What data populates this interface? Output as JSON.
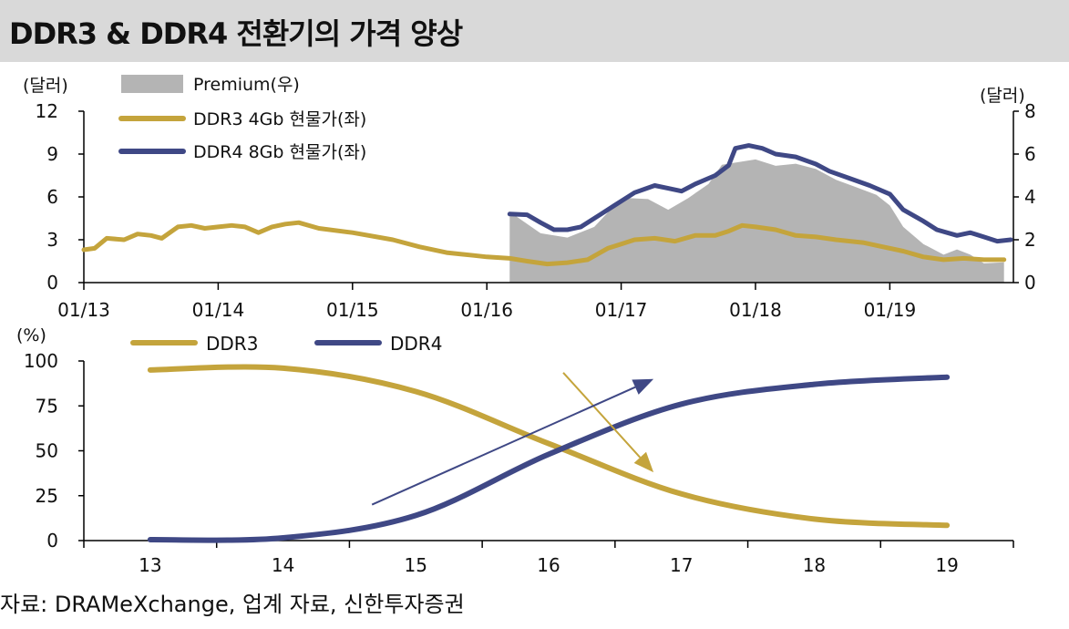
{
  "header": {
    "title": "DDR3 & DDR4 전환기의 가격 양상"
  },
  "footer": {
    "source": "자료: DRAMeXchange, 업계 자료, 신한투자증권"
  },
  "colors": {
    "ddr3": "#c4a43c",
    "ddr4": "#3f4885",
    "premium": "#b4b4b4"
  },
  "chart_data": [
    {
      "type": "line",
      "left_axis_unit": "(달러)",
      "right_axis_unit": "(달러)",
      "ylim_left": [
        0,
        12
      ],
      "ylim_right": [
        0,
        8
      ],
      "yticks_left": [
        "0",
        "3",
        "6",
        "9",
        "12"
      ],
      "yticks_right": [
        "0",
        "2",
        "4",
        "6",
        "8"
      ],
      "xlim": [
        2013.0,
        2019.92
      ],
      "x_ticks": [
        "01/13",
        "01/14",
        "01/15",
        "01/16",
        "01/17",
        "01/18",
        "01/19"
      ],
      "x_tick_values": [
        2013.0,
        2014.0,
        2015.0,
        2016.0,
        2017.0,
        2018.0,
        2019.0
      ],
      "series": [
        {
          "name": "Premium(우)",
          "axis": "right",
          "kind": "area",
          "color_key": "premium",
          "points": [
            [
              2016.17,
              3.3
            ],
            [
              2016.4,
              2.3
            ],
            [
              2016.6,
              2.1
            ],
            [
              2016.8,
              2.6
            ],
            [
              2016.95,
              3.6
            ],
            [
              2017.05,
              3.95
            ],
            [
              2017.2,
              3.9
            ],
            [
              2017.35,
              3.4
            ],
            [
              2017.5,
              3.95
            ],
            [
              2017.65,
              4.6
            ],
            [
              2017.75,
              5.5
            ],
            [
              2017.85,
              5.6
            ],
            [
              2018.0,
              5.75
            ],
            [
              2018.15,
              5.45
            ],
            [
              2018.3,
              5.55
            ],
            [
              2018.45,
              5.3
            ],
            [
              2018.6,
              4.8
            ],
            [
              2018.75,
              4.45
            ],
            [
              2018.9,
              4.1
            ],
            [
              2019.0,
              3.6
            ],
            [
              2019.1,
              2.6
            ],
            [
              2019.25,
              1.8
            ],
            [
              2019.4,
              1.3
            ],
            [
              2019.5,
              1.55
            ],
            [
              2019.6,
              1.3
            ],
            [
              2019.7,
              0.9
            ],
            [
              2019.85,
              0.95
            ]
          ]
        },
        {
          "name": "DDR3  4Gb 현물가(좌)",
          "axis": "left",
          "kind": "line",
          "color_key": "ddr3",
          "points": [
            [
              2013.0,
              2.3
            ],
            [
              2013.08,
              2.4
            ],
            [
              2013.17,
              3.1
            ],
            [
              2013.3,
              3.0
            ],
            [
              2013.4,
              3.4
            ],
            [
              2013.5,
              3.3
            ],
            [
              2013.58,
              3.1
            ],
            [
              2013.7,
              3.9
            ],
            [
              2013.8,
              4.0
            ],
            [
              2013.9,
              3.8
            ],
            [
              2014.0,
              3.9
            ],
            [
              2014.1,
              4.0
            ],
            [
              2014.2,
              3.9
            ],
            [
              2014.3,
              3.5
            ],
            [
              2014.4,
              3.9
            ],
            [
              2014.5,
              4.1
            ],
            [
              2014.6,
              4.2
            ],
            [
              2014.75,
              3.8
            ],
            [
              2015.0,
              3.5
            ],
            [
              2015.3,
              3.0
            ],
            [
              2015.5,
              2.5
            ],
            [
              2015.7,
              2.1
            ],
            [
              2015.9,
              1.9
            ],
            [
              2016.0,
              1.8
            ],
            [
              2016.17,
              1.7
            ],
            [
              2016.3,
              1.5
            ],
            [
              2016.45,
              1.3
            ],
            [
              2016.6,
              1.4
            ],
            [
              2016.75,
              1.6
            ],
            [
              2016.9,
              2.4
            ],
            [
              2017.0,
              2.7
            ],
            [
              2017.1,
              3.0
            ],
            [
              2017.25,
              3.1
            ],
            [
              2017.4,
              2.9
            ],
            [
              2017.55,
              3.3
            ],
            [
              2017.7,
              3.3
            ],
            [
              2017.8,
              3.6
            ],
            [
              2017.9,
              4.0
            ],
            [
              2018.0,
              3.9
            ],
            [
              2018.15,
              3.7
            ],
            [
              2018.3,
              3.3
            ],
            [
              2018.45,
              3.2
            ],
            [
              2018.6,
              3.0
            ],
            [
              2018.8,
              2.8
            ],
            [
              2018.95,
              2.5
            ],
            [
              2019.1,
              2.2
            ],
            [
              2019.25,
              1.8
            ],
            [
              2019.4,
              1.6
            ],
            [
              2019.55,
              1.7
            ],
            [
              2019.7,
              1.6
            ],
            [
              2019.85,
              1.6
            ]
          ]
        },
        {
          "name": "DDR4  8Gb 현물가(좌)",
          "axis": "left",
          "kind": "line",
          "color_key": "ddr4",
          "points": [
            [
              2016.17,
              4.8
            ],
            [
              2016.3,
              4.75
            ],
            [
              2016.4,
              4.2
            ],
            [
              2016.5,
              3.7
            ],
            [
              2016.6,
              3.7
            ],
            [
              2016.7,
              3.9
            ],
            [
              2016.85,
              4.8
            ],
            [
              2016.95,
              5.4
            ],
            [
              2017.1,
              6.3
            ],
            [
              2017.25,
              6.8
            ],
            [
              2017.35,
              6.6
            ],
            [
              2017.45,
              6.4
            ],
            [
              2017.55,
              6.9
            ],
            [
              2017.7,
              7.5
            ],
            [
              2017.8,
              8.2
            ],
            [
              2017.85,
              9.4
            ],
            [
              2017.95,
              9.6
            ],
            [
              2018.05,
              9.4
            ],
            [
              2018.15,
              9.0
            ],
            [
              2018.3,
              8.8
            ],
            [
              2018.45,
              8.3
            ],
            [
              2018.55,
              7.8
            ],
            [
              2018.7,
              7.3
            ],
            [
              2018.85,
              6.8
            ],
            [
              2019.0,
              6.2
            ],
            [
              2019.1,
              5.1
            ],
            [
              2019.25,
              4.3
            ],
            [
              2019.35,
              3.7
            ],
            [
              2019.5,
              3.3
            ],
            [
              2019.6,
              3.5
            ],
            [
              2019.7,
              3.2
            ],
            [
              2019.8,
              2.9
            ],
            [
              2019.9,
              3.0
            ]
          ]
        }
      ]
    },
    {
      "type": "line",
      "y_axis_unit": "(%)",
      "ylim": [
        0,
        100
      ],
      "yticks": [
        "0",
        "25",
        "50",
        "75",
        "100"
      ],
      "categories": [
        "13",
        "14",
        "15",
        "16",
        "17",
        "18",
        "19"
      ],
      "x": [
        13,
        14,
        15,
        16,
        17,
        18,
        19
      ],
      "xlim": [
        12.5,
        19.5
      ],
      "series": [
        {
          "name": "DDR3",
          "color_key": "ddr3",
          "values": [
            95,
            96,
            83,
            54,
            26,
            12,
            8.5
          ]
        },
        {
          "name": "DDR4",
          "color_key": "ddr4",
          "values": [
            0.5,
            1.5,
            14,
            48,
            76,
            87,
            91
          ]
        }
      ],
      "annotations": [
        {
          "kind": "arrow",
          "color_key": "ddr3",
          "from": [
            16.11,
            93.5
          ],
          "to": [
            16.79,
            38
          ]
        },
        {
          "kind": "arrow",
          "color_key": "ddr4",
          "from": [
            14.67,
            20
          ],
          "to": [
            16.79,
            90
          ]
        }
      ]
    }
  ]
}
